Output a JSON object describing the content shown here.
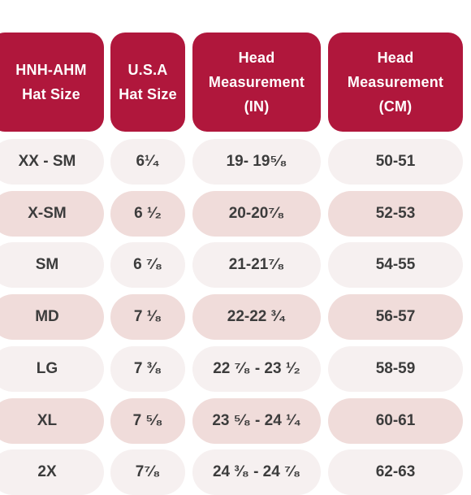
{
  "headers": [
    "HNH-AHM\nHat Size",
    "U.S.A\nHat Size",
    "Head\nMeasurement\n(IN)",
    "Head\nMeasurement\n(CM)"
  ],
  "rows": [
    {
      "hnh": "XX - SM",
      "usa": "6¹⁄₄",
      "inch": "19- 19⁵⁄₈",
      "cm": "50-51",
      "shade": "light"
    },
    {
      "hnh": "X-SM",
      "usa": "6 ¹⁄₂",
      "inch": "20-20⁷⁄₈",
      "cm": "52-53",
      "shade": "pink"
    },
    {
      "hnh": "SM",
      "usa": "6 ⁷⁄₈",
      "inch": "21-21⁷⁄₈",
      "cm": "54-55",
      "shade": "light"
    },
    {
      "hnh": "MD",
      "usa": "7 ¹⁄₈",
      "inch": "22-22 ³⁄₄",
      "cm": "56-57",
      "shade": "pink"
    },
    {
      "hnh": "LG",
      "usa": "7 ³⁄₈",
      "inch": "22 ⁷⁄₈ - 23 ¹⁄₂",
      "cm": "58-59",
      "shade": "light"
    },
    {
      "hnh": "XL",
      "usa": "7 ⁵⁄₈",
      "inch": "23 ⁵⁄₈ - 24 ¹⁄₄",
      "cm": "60-61",
      "shade": "pink"
    },
    {
      "hnh": "2X",
      "usa": "7⁷⁄₈",
      "inch": "24 ³⁄₈ - 24 ⁷⁄₈",
      "cm": "62-63",
      "shade": "light"
    }
  ],
  "colors": {
    "header_bg": "#b0173c",
    "header_text": "#ffffff",
    "row_light": "#f6f0f0",
    "row_pink": "#f0dcda",
    "row_text": "#3c3c3c"
  }
}
